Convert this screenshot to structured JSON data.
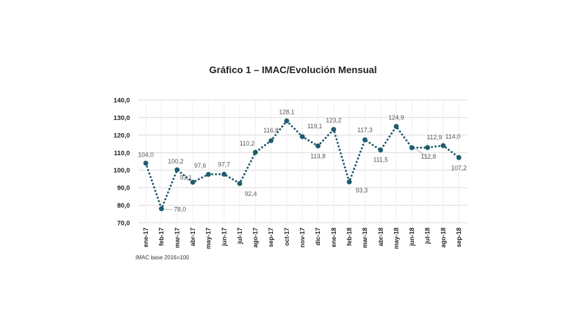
{
  "chart_data": {
    "type": "line",
    "title": "Gráfico 1 – IMAC/Evolución Mensual",
    "note": "IMAC base 2016=100",
    "categories": [
      "ene-17",
      "feb-17",
      "mar-17",
      "abr-17",
      "may-17",
      "jun-17",
      "jul-17",
      "ago-17",
      "sep-17",
      "oct-17",
      "nov-17",
      "dic-17",
      "ene-18",
      "feb-18",
      "mar-18",
      "abr-18",
      "may-18",
      "jun-18",
      "jul-18",
      "ago-18",
      "sep-18"
    ],
    "series": [
      {
        "values": [
          104.0,
          78.0,
          100.2,
          93.1,
          97.6,
          97.7,
          92.4,
          110.2,
          116.8,
          128.1,
          119.1,
          113.8,
          123.2,
          93.3,
          117.3,
          111.5,
          124.9,
          112.8,
          112.9,
          114.0,
          107.2
        ],
        "labels": [
          "104,0",
          "78,0",
          "100,2",
          "93,1",
          "97,6",
          "97,7",
          "92,4",
          "110,2",
          "116,8",
          "128,1",
          "119,1",
          "113,8",
          "123,2",
          "93,3",
          "117,3",
          "111,5",
          "124,9",
          "112,8",
          "112,9",
          "114,0",
          "107,2"
        ]
      }
    ],
    "ylim": [
      70,
      140
    ],
    "yticks": [
      "70,0",
      "80,0",
      "90,0",
      "100,0",
      "110,0",
      "120,0",
      "130,0",
      "140,0"
    ],
    "grid": true,
    "legend": "none",
    "colors": {
      "line": "#1f5b6e",
      "marker": "#1f5b6e",
      "grid": "#d9d9d9"
    }
  }
}
